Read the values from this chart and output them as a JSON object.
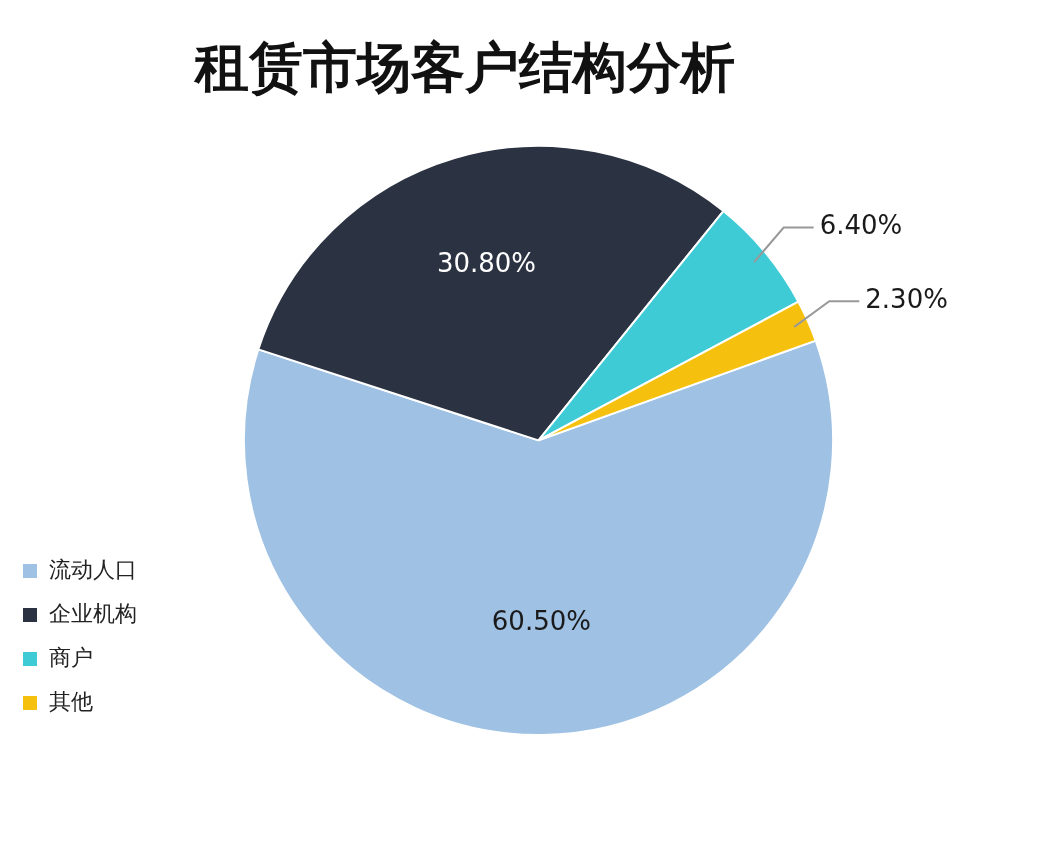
{
  "chart_data": {
    "type": "pie",
    "title": "租赁市场客户结构分析",
    "categories": [
      "流动人口",
      "企业机构",
      "商户",
      "其他"
    ],
    "values": [
      60.5,
      30.8,
      6.4,
      2.3
    ],
    "value_labels": [
      "60.50%",
      "30.80%",
      "6.40%",
      "2.30%"
    ],
    "colors": [
      "#9fc1e4",
      "#2b3242",
      "#3ecbd6",
      "#f6c10e"
    ],
    "legend": "bottom left"
  }
}
